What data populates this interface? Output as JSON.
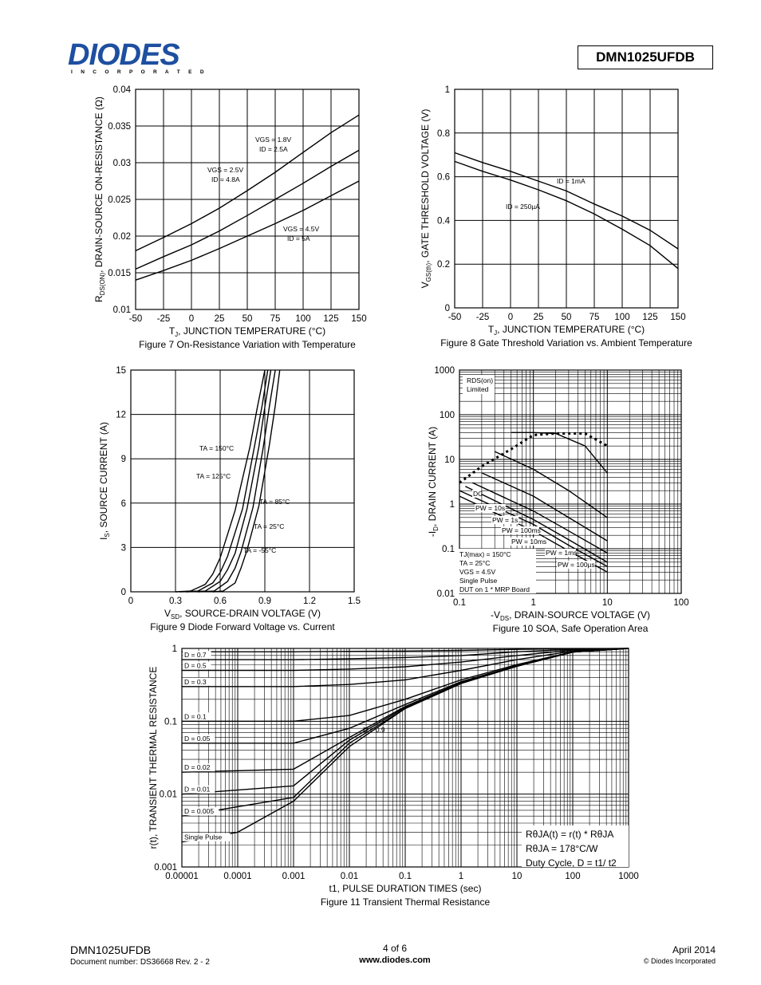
{
  "header": {
    "logo_text": "DIODES",
    "logo_sub": "I N C O R P O R A T E D",
    "part_number": "DMN1025UFDB"
  },
  "footer": {
    "part": "DMN1025UFDB",
    "doc": "Document number: DS36668 Rev. 2 - 2",
    "page": "4 of 6",
    "web": "www.diodes.com",
    "date": "April 2014",
    "copyright": "© Diodes Incorporated"
  },
  "chart_data": [
    {
      "id": "fig7",
      "type": "line",
      "caption": "Figure 7 On-Resistance Variation with Temperature",
      "xlabel": "T_J, JUNCTION TEMPERATURE (°C)",
      "ylabel": "R_DS(ON), DRAIN-SOURCE ON-RESISTANCE (Ω)",
      "xlim": [
        -50,
        150
      ],
      "ylim": [
        0.01,
        0.04
      ],
      "xticks": [
        "-50",
        "-25",
        "0",
        "25",
        "50",
        "75",
        "100",
        "125",
        "150"
      ],
      "yticks": [
        "0.01",
        "0.015",
        "0.02",
        "0.025",
        "0.03",
        "0.035",
        "0.04"
      ],
      "grid": true,
      "series": [
        {
          "name": "VGS = 1.8V, ID = 2.5A",
          "x": [
            -50,
            -25,
            0,
            25,
            50,
            75,
            100,
            125,
            150
          ],
          "y": [
            0.018,
            0.0198,
            0.0217,
            0.0238,
            0.0262,
            0.0287,
            0.0314,
            0.0341,
            0.0365
          ]
        },
        {
          "name": "VGS = 2.5V, ID = 4.8A",
          "x": [
            -50,
            -25,
            0,
            25,
            50,
            75,
            100,
            125,
            150
          ],
          "y": [
            0.0155,
            0.0172,
            0.0188,
            0.0207,
            0.0228,
            0.025,
            0.0272,
            0.0295,
            0.0317
          ]
        },
        {
          "name": "VGS = 4.5V, ID = 5A",
          "x": [
            -50,
            -25,
            0,
            25,
            50,
            75,
            100,
            125,
            150
          ],
          "y": [
            0.014,
            0.0153,
            0.0167,
            0.0183,
            0.02,
            0.0217,
            0.0235,
            0.0255,
            0.0275
          ]
        }
      ]
    },
    {
      "id": "fig8",
      "type": "line",
      "caption": "Figure 8 Gate Threshold Variation vs. Ambient Temperature",
      "xlabel": "T_J, JUNCTION TEMPERATURE (°C)",
      "ylabel": "V_GS(th), GATE THRESHOLD VOLTAGE (V)",
      "xlim": [
        -50,
        150
      ],
      "ylim": [
        0,
        1
      ],
      "xticks": [
        "-50",
        "-25",
        "0",
        "25",
        "50",
        "75",
        "100",
        "125",
        "150"
      ],
      "yticks": [
        "0",
        "0.2",
        "0.4",
        "0.6",
        "0.8",
        "1"
      ],
      "grid": true,
      "series": [
        {
          "name": "ID = 1mA",
          "x": [
            -50,
            -25,
            0,
            25,
            50,
            75,
            100,
            125,
            150
          ],
          "y": [
            0.71,
            0.665,
            0.625,
            0.58,
            0.535,
            0.475,
            0.42,
            0.355,
            0.27
          ]
        },
        {
          "name": "ID = 250µA",
          "x": [
            -50,
            -25,
            0,
            25,
            50,
            75,
            100,
            125,
            150
          ],
          "y": [
            0.67,
            0.625,
            0.585,
            0.54,
            0.49,
            0.43,
            0.36,
            0.285,
            0.18
          ]
        }
      ]
    },
    {
      "id": "fig9",
      "type": "line",
      "caption": "Figure 9 Diode Forward Voltage vs. Current",
      "xlabel": "V_SD, SOURCE-DRAIN VOLTAGE (V)",
      "ylabel": "I_S, SOURCE CURRENT (A)",
      "xlim": [
        0,
        1.5
      ],
      "ylim": [
        0,
        15
      ],
      "xticks": [
        "0",
        "0.3",
        "0.6",
        "0.9",
        "1.2",
        "1.5"
      ],
      "yticks": [
        "0",
        "3",
        "6",
        "9",
        "12",
        "15"
      ],
      "grid": true,
      "series": [
        {
          "name": "TA = 150°C",
          "x": [
            0.3,
            0.4,
            0.5,
            0.55,
            0.6,
            0.7,
            0.8,
            0.85,
            0.9
          ],
          "y": [
            0,
            0.05,
            0.5,
            1.2,
            2.3,
            5.5,
            9.8,
            12.5,
            15
          ]
        },
        {
          "name": "TA = 125°C",
          "x": [
            0.33,
            0.45,
            0.55,
            0.6,
            0.65,
            0.75,
            0.83,
            0.88,
            0.92
          ],
          "y": [
            0,
            0.05,
            0.6,
            1.3,
            2.4,
            5.6,
            9.8,
            12.5,
            15
          ]
        },
        {
          "name": "TA = 85°C",
          "x": [
            0.37,
            0.5,
            0.6,
            0.65,
            0.7,
            0.78,
            0.86,
            0.9,
            0.94
          ],
          "y": [
            0,
            0.05,
            0.7,
            1.5,
            2.6,
            5.6,
            9.8,
            12.5,
            15
          ]
        },
        {
          "name": "TA = 25°C",
          "x": [
            0.45,
            0.56,
            0.65,
            0.7,
            0.74,
            0.82,
            0.89,
            0.93,
            0.97
          ],
          "y": [
            0,
            0.05,
            0.7,
            1.6,
            2.7,
            5.7,
            9.8,
            12.5,
            15
          ]
        },
        {
          "name": "TA = -55°C",
          "x": [
            0.55,
            0.62,
            0.7,
            0.74,
            0.78,
            0.86,
            0.93,
            0.97,
            1.0
          ],
          "y": [
            0,
            0.05,
            0.6,
            1.6,
            2.8,
            5.8,
            9.9,
            12.6,
            15
          ]
        }
      ]
    },
    {
      "id": "fig10",
      "type": "line",
      "caption": "Figure 10 SOA, Safe Operation Area",
      "xlabel": "-V_DS, DRAIN-SOURCE VOLTAGE (V)",
      "ylabel": "-I_D, DRAIN CURRENT (A)",
      "xscale": "log",
      "yscale": "log",
      "xlim": [
        0.1,
        100
      ],
      "ylim": [
        0.01,
        1000
      ],
      "xticks": [
        "0.1",
        "1",
        "10",
        "100"
      ],
      "yticks": [
        "0.01",
        "0.1",
        "1",
        "10",
        "100",
        "1000"
      ],
      "grid": true,
      "annotations": [
        "RDS(on) Limited",
        "TJ(max) = 150°C",
        "TA = 25°C",
        "VGS = 4.5V",
        "Single Pulse",
        "DUT on 1 * MRP Board"
      ],
      "series": [
        {
          "name": "RDS(on) Limited",
          "x": [
            0.1,
            0.2,
            0.5,
            1,
            2,
            5,
            10
          ],
          "y": [
            3,
            7,
            17,
            35,
            38,
            38,
            20
          ]
        },
        {
          "name": "PW = 100µs",
          "x": [
            0.5,
            1,
            2,
            5,
            10
          ],
          "y": [
            40,
            40,
            38,
            20,
            5
          ]
        },
        {
          "name": "PW = 1ms",
          "x": [
            0.3,
            1,
            3,
            10
          ],
          "y": [
            15,
            6,
            2,
            0.5
          ]
        },
        {
          "name": "PW = 10ms",
          "x": [
            0.2,
            1,
            3,
            10
          ],
          "y": [
            5,
            1.5,
            0.5,
            0.15
          ]
        },
        {
          "name": "PW = 100ms",
          "x": [
            0.15,
            1,
            3,
            10
          ],
          "y": [
            3,
            0.7,
            0.25,
            0.08
          ]
        },
        {
          "name": "PW = 1s",
          "x": [
            0.12,
            1,
            3,
            10
          ],
          "y": [
            2.5,
            0.45,
            0.16,
            0.05
          ]
        },
        {
          "name": "PW = 10s",
          "x": [
            0.1,
            1,
            3,
            10
          ],
          "y": [
            2,
            0.35,
            0.12,
            0.04
          ]
        },
        {
          "name": "DC",
          "x": [
            0.1,
            1,
            3,
            10
          ],
          "y": [
            1.5,
            0.25,
            0.09,
            0.03
          ]
        }
      ]
    },
    {
      "id": "fig11",
      "type": "line",
      "caption": "Figure 11 Transient Thermal Resistance",
      "xlabel": "t1, PULSE DURATION TIMES (sec)",
      "ylabel": "r(t), TRANSIENT THERMAL RESISTANCE",
      "xscale": "log",
      "yscale": "log",
      "xlim": [
        1e-05,
        1000
      ],
      "ylim": [
        0.001,
        1
      ],
      "xticks": [
        "0.00001",
        "0.0001",
        "0.001",
        "0.01",
        "0.1",
        "1",
        "10",
        "100",
        "1000"
      ],
      "yticks": [
        "0.001",
        "0.01",
        "0.1",
        "1"
      ],
      "grid": true,
      "annotations": [
        "RθJA(t) = r(t) * RθJA",
        "RθJA = 178°C/W",
        "Duty Cycle, D = t1/ t2"
      ],
      "series": [
        {
          "name": "D = 0.9",
          "x": [
            1e-05,
            0.001,
            0.01,
            0.1,
            1,
            10,
            100,
            1000
          ],
          "y": [
            0.9,
            0.9,
            0.91,
            0.92,
            0.94,
            0.97,
            0.99,
            1
          ]
        },
        {
          "name": "D = 0.7",
          "x": [
            1e-05,
            0.001,
            0.01,
            0.1,
            1,
            10,
            100,
            1000
          ],
          "y": [
            0.7,
            0.7,
            0.72,
            0.75,
            0.8,
            0.9,
            0.97,
            1
          ]
        },
        {
          "name": "D = 0.5",
          "x": [
            1e-05,
            0.001,
            0.01,
            0.1,
            1,
            10,
            100,
            1000
          ],
          "y": [
            0.5,
            0.5,
            0.52,
            0.56,
            0.65,
            0.8,
            0.95,
            1
          ]
        },
        {
          "name": "D = 0.3",
          "x": [
            1e-05,
            0.001,
            0.01,
            0.1,
            1,
            10,
            100,
            1000
          ],
          "y": [
            0.3,
            0.3,
            0.32,
            0.37,
            0.5,
            0.7,
            0.92,
            1
          ]
        },
        {
          "name": "D = 0.1",
          "x": [
            1e-05,
            0.001,
            0.01,
            0.1,
            1,
            10,
            100,
            1000
          ],
          "y": [
            0.1,
            0.1,
            0.12,
            0.2,
            0.37,
            0.6,
            0.9,
            1
          ]
        },
        {
          "name": "D = 0.05",
          "x": [
            1e-05,
            0.001,
            0.01,
            0.1,
            1,
            10,
            100,
            1000
          ],
          "y": [
            0.05,
            0.05,
            0.08,
            0.17,
            0.35,
            0.58,
            0.89,
            1
          ]
        },
        {
          "name": "D = 0.02",
          "x": [
            1e-05,
            0.001,
            0.01,
            0.1,
            1,
            10,
            100,
            1000
          ],
          "y": [
            0.02,
            0.022,
            0.06,
            0.16,
            0.34,
            0.57,
            0.89,
            1
          ]
        },
        {
          "name": "D = 0.01",
          "x": [
            1e-05,
            0.001,
            0.01,
            0.1,
            1,
            10,
            100,
            1000
          ],
          "y": [
            0.01,
            0.013,
            0.055,
            0.155,
            0.34,
            0.57,
            0.89,
            1
          ]
        },
        {
          "name": "D = 0.005",
          "x": [
            1e-05,
            0.001,
            0.01,
            0.1,
            1,
            10,
            100,
            1000
          ],
          "y": [
            0.005,
            0.009,
            0.05,
            0.15,
            0.33,
            0.57,
            0.89,
            1
          ]
        },
        {
          "name": "Single Pulse",
          "x": [
            1e-05,
            0.0001,
            0.001,
            0.01,
            0.1,
            1,
            10,
            100,
            1000
          ],
          "y": [
            0.0022,
            0.003,
            0.008,
            0.045,
            0.15,
            0.33,
            0.57,
            0.89,
            1
          ]
        }
      ]
    }
  ]
}
